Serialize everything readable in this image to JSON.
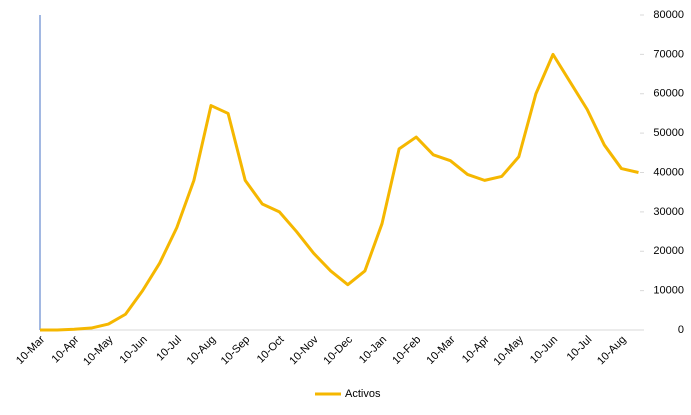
{
  "chart_data": {
    "type": "line",
    "categories": [
      "10-Mar",
      null,
      "10-Apr",
      null,
      "10-May",
      null,
      "10-Jun",
      null,
      "10-Jul",
      null,
      "10-Aug",
      null,
      "10-Sep",
      null,
      "10-Oct",
      null,
      "10-Nov",
      null,
      "10-Dec",
      null,
      "10-Jan",
      null,
      "10-Feb",
      null,
      "10-Mar",
      null,
      "10-Apr",
      null,
      "10-May",
      null,
      "10-Jun",
      null,
      "10-Jul",
      null,
      "10-Aug",
      null
    ],
    "series": [
      {
        "name": "Activos",
        "color": "#f5b700",
        "values": [
          0,
          0,
          200,
          500,
          1500,
          4000,
          10000,
          17000,
          26000,
          38000,
          57000,
          55000,
          38000,
          32000,
          30000,
          25000,
          19500,
          15000,
          11500,
          15000,
          27000,
          46000,
          49000,
          44500,
          43000,
          39500,
          38000,
          39000,
          44000,
          60000,
          70000,
          63000,
          56000,
          47000,
          41000,
          40000
        ]
      }
    ],
    "ylim": [
      0,
      80000
    ],
    "yticks": [
      0,
      10000,
      20000,
      30000,
      40000,
      50000,
      60000,
      70000,
      80000
    ],
    "legend": "bottom"
  }
}
